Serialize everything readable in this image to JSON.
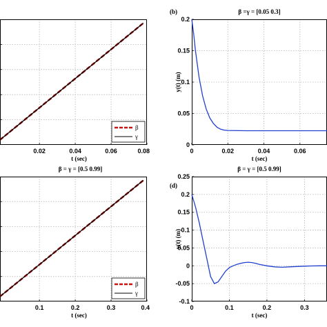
{
  "colors": {
    "beta": "#cc1111",
    "gamma": "#000000",
    "response": "#1f3fcf",
    "grid": "#b5b5b5"
  },
  "chart_data": [
    {
      "id": "a",
      "type": "line",
      "panel_label": "",
      "title": "",
      "xlabel": "t  (sec)",
      "ylabel": "",
      "xlim": [
        -0.002,
        0.08
      ],
      "ylim": [
        0,
        1
      ],
      "grid": true,
      "show_yticks": false,
      "xticks": [
        0.02,
        0.04,
        0.06,
        0.08
      ],
      "xtick_labels": [
        "0.02",
        "0.04",
        "0.06",
        "0.08"
      ],
      "yticks": [
        0.2,
        0.4,
        0.6,
        0.8
      ],
      "ytick_labels": [],
      "legend": {
        "position": "bottom-right",
        "entries": [
          "β",
          "γ"
        ]
      },
      "series": [
        {
          "name": "β",
          "style": "dashed",
          "color": "#cc1111",
          "x": [
            -0.002,
            0.078
          ],
          "y": [
            0.04,
            0.97
          ]
        },
        {
          "name": "γ",
          "style": "solid",
          "color": "#000000",
          "x": [
            -0.002,
            0.078
          ],
          "y": [
            0.04,
            0.97
          ]
        }
      ]
    },
    {
      "id": "b",
      "type": "line",
      "panel_label": "(b)",
      "title": "β =γ = [0.05  0.3]",
      "xlabel": "t  (sec)",
      "ylabel": "y(t)  (m)",
      "xlim": [
        0,
        0.075
      ],
      "ylim": [
        0,
        0.2
      ],
      "grid": true,
      "show_yticks": true,
      "xticks": [
        0,
        0.02,
        0.04,
        0.06
      ],
      "xtick_labels": [
        "0",
        "0.02",
        "0.04",
        "0.06"
      ],
      "yticks": [
        0,
        0.05,
        0.1,
        0.15,
        0.2
      ],
      "ytick_labels": [
        "0",
        "0.05",
        "0.1",
        "0.15",
        "0.2"
      ],
      "legend": null,
      "series": [
        {
          "name": "",
          "style": "solid",
          "color": "#1f3fcf",
          "x": [
            0,
            0.001,
            0.002,
            0.004,
            0.006,
            0.008,
            0.01,
            0.012,
            0.014,
            0.016,
            0.018,
            0.02,
            0.03,
            0.04,
            0.05,
            0.06,
            0.075
          ],
          "y": [
            0.2,
            0.178,
            0.151,
            0.108,
            0.078,
            0.057,
            0.043,
            0.034,
            0.028,
            0.025,
            0.0235,
            0.023,
            0.0225,
            0.0225,
            0.0225,
            0.0225,
            0.0225
          ]
        }
      ]
    },
    {
      "id": "c",
      "type": "line",
      "panel_label": "",
      "title": "β = γ = [0.5  0.99]",
      "xlabel": "t  (sec)",
      "ylabel": "",
      "xlim": [
        -0.01,
        0.4
      ],
      "ylim": [
        0,
        1
      ],
      "grid": true,
      "show_yticks": false,
      "xticks": [
        0.1,
        0.2,
        0.3,
        0.4
      ],
      "xtick_labels": [
        "0.1",
        "0.2",
        "0.3",
        "0.4"
      ],
      "yticks": [
        0.2,
        0.4,
        0.6,
        0.8
      ],
      "ytick_labels": [],
      "legend": {
        "position": "bottom-right",
        "entries": [
          "β",
          "γ"
        ]
      },
      "series": [
        {
          "name": "β",
          "style": "dashed",
          "color": "#cc1111",
          "x": [
            -0.01,
            0.39
          ],
          "y": [
            0.04,
            0.97
          ]
        },
        {
          "name": "γ",
          "style": "solid",
          "color": "#000000",
          "x": [
            -0.01,
            0.39
          ],
          "y": [
            0.04,
            0.97
          ]
        }
      ]
    },
    {
      "id": "d",
      "type": "line",
      "panel_label": "(d)",
      "title": "β = γ = [0.5   0.99]",
      "xlabel": "t  (sec)",
      "ylabel": "y(t)  (m)",
      "xlim": [
        0,
        0.36
      ],
      "ylim": [
        -0.1,
        0.25
      ],
      "grid": true,
      "show_yticks": true,
      "xticks": [
        0,
        0.1,
        0.2,
        0.3
      ],
      "xtick_labels": [
        "0",
        "0.1",
        "0.2",
        "0.3"
      ],
      "yticks": [
        -0.1,
        -0.05,
        0,
        0.05,
        0.1,
        0.15,
        0.2,
        0.25
      ],
      "ytick_labels": [
        "-0.1",
        "-0.05",
        "0",
        "0.05",
        "0.1",
        "0.15",
        "0.2",
        "0.25"
      ],
      "legend": null,
      "series": [
        {
          "name": "",
          "style": "solid",
          "color": "#1f3fcf",
          "x": [
            0,
            0.01,
            0.02,
            0.03,
            0.04,
            0.05,
            0.06,
            0.07,
            0.08,
            0.09,
            0.1,
            0.11,
            0.12,
            0.13,
            0.14,
            0.15,
            0.16,
            0.17,
            0.18,
            0.19,
            0.2,
            0.22,
            0.24,
            0.26,
            0.28,
            0.3,
            0.32,
            0.34,
            0.36
          ],
          "y": [
            0.2,
            0.165,
            0.12,
            0.07,
            0.02,
            -0.03,
            -0.05,
            -0.045,
            -0.03,
            -0.015,
            -0.005,
            0.0,
            0.004,
            0.007,
            0.009,
            0.01,
            0.009,
            0.007,
            0.004,
            0.002,
            0.0,
            -0.003,
            -0.004,
            -0.003,
            -0.002,
            -0.001,
            -0.0005,
            0.0,
            0.0
          ]
        }
      ]
    }
  ]
}
